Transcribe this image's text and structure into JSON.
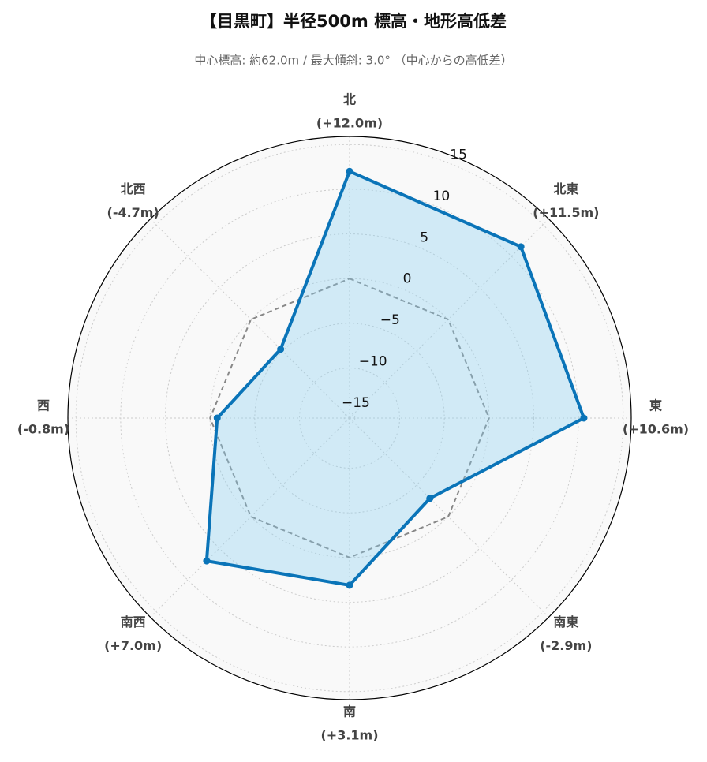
{
  "chart_data": {
    "type": "radar",
    "title": "【目黒町】半径500m 標高・地形高低差",
    "subtitle": "中心標高: 約62.0m / 最大傾斜: 3.0° （中心からの高低差）",
    "categories": [
      "北",
      "北東",
      "東",
      "南東",
      "南",
      "南西",
      "西",
      "北西"
    ],
    "values": [
      12.0,
      11.5,
      10.6,
      -2.9,
      3.1,
      7.0,
      -0.8,
      -4.7
    ],
    "value_labels": [
      "(+12.0m)",
      "(+11.5m)",
      "(+10.6m)",
      "(-2.9m)",
      "(+3.1m)",
      "(+7.0m)",
      "(-0.8m)",
      "(-4.7m)"
    ],
    "color": "#0a74b8",
    "reference_value": 0,
    "ylim": [
      -15.6,
      15.9
    ],
    "yticks": [
      {
        "value": -15,
        "label": "−15"
      },
      {
        "value": -10,
        "label": "−10"
      },
      {
        "value": -5,
        "label": "−5"
      },
      0,
      5,
      10,
      15
    ],
    "grid": true
  }
}
